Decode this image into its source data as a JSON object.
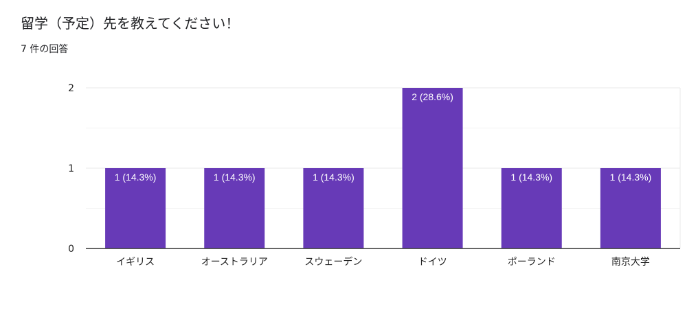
{
  "title": "留学（予定）先を教えてください！",
  "response_count": "7 件の回答",
  "colors": {
    "bar": "#673ab7",
    "grid": "#e8e8e8",
    "axis": "#333333"
  },
  "chart_data": {
    "type": "bar",
    "categories": [
      "イギリス",
      "オーストラリア",
      "スウェーデン",
      "ドイツ",
      "ポーランド",
      "南京大学"
    ],
    "values": [
      1,
      1,
      1,
      2,
      1,
      1
    ],
    "data_labels": [
      "1 (14.3%)",
      "1 (14.3%)",
      "1 (14.3%)",
      "2 (28.6%)",
      "1 (14.3%)",
      "1 (14.3%)"
    ],
    "y_ticks": [
      "0",
      "1",
      "2"
    ],
    "ylim": [
      0,
      2
    ],
    "grid": true,
    "xlabel": "",
    "ylabel": ""
  }
}
